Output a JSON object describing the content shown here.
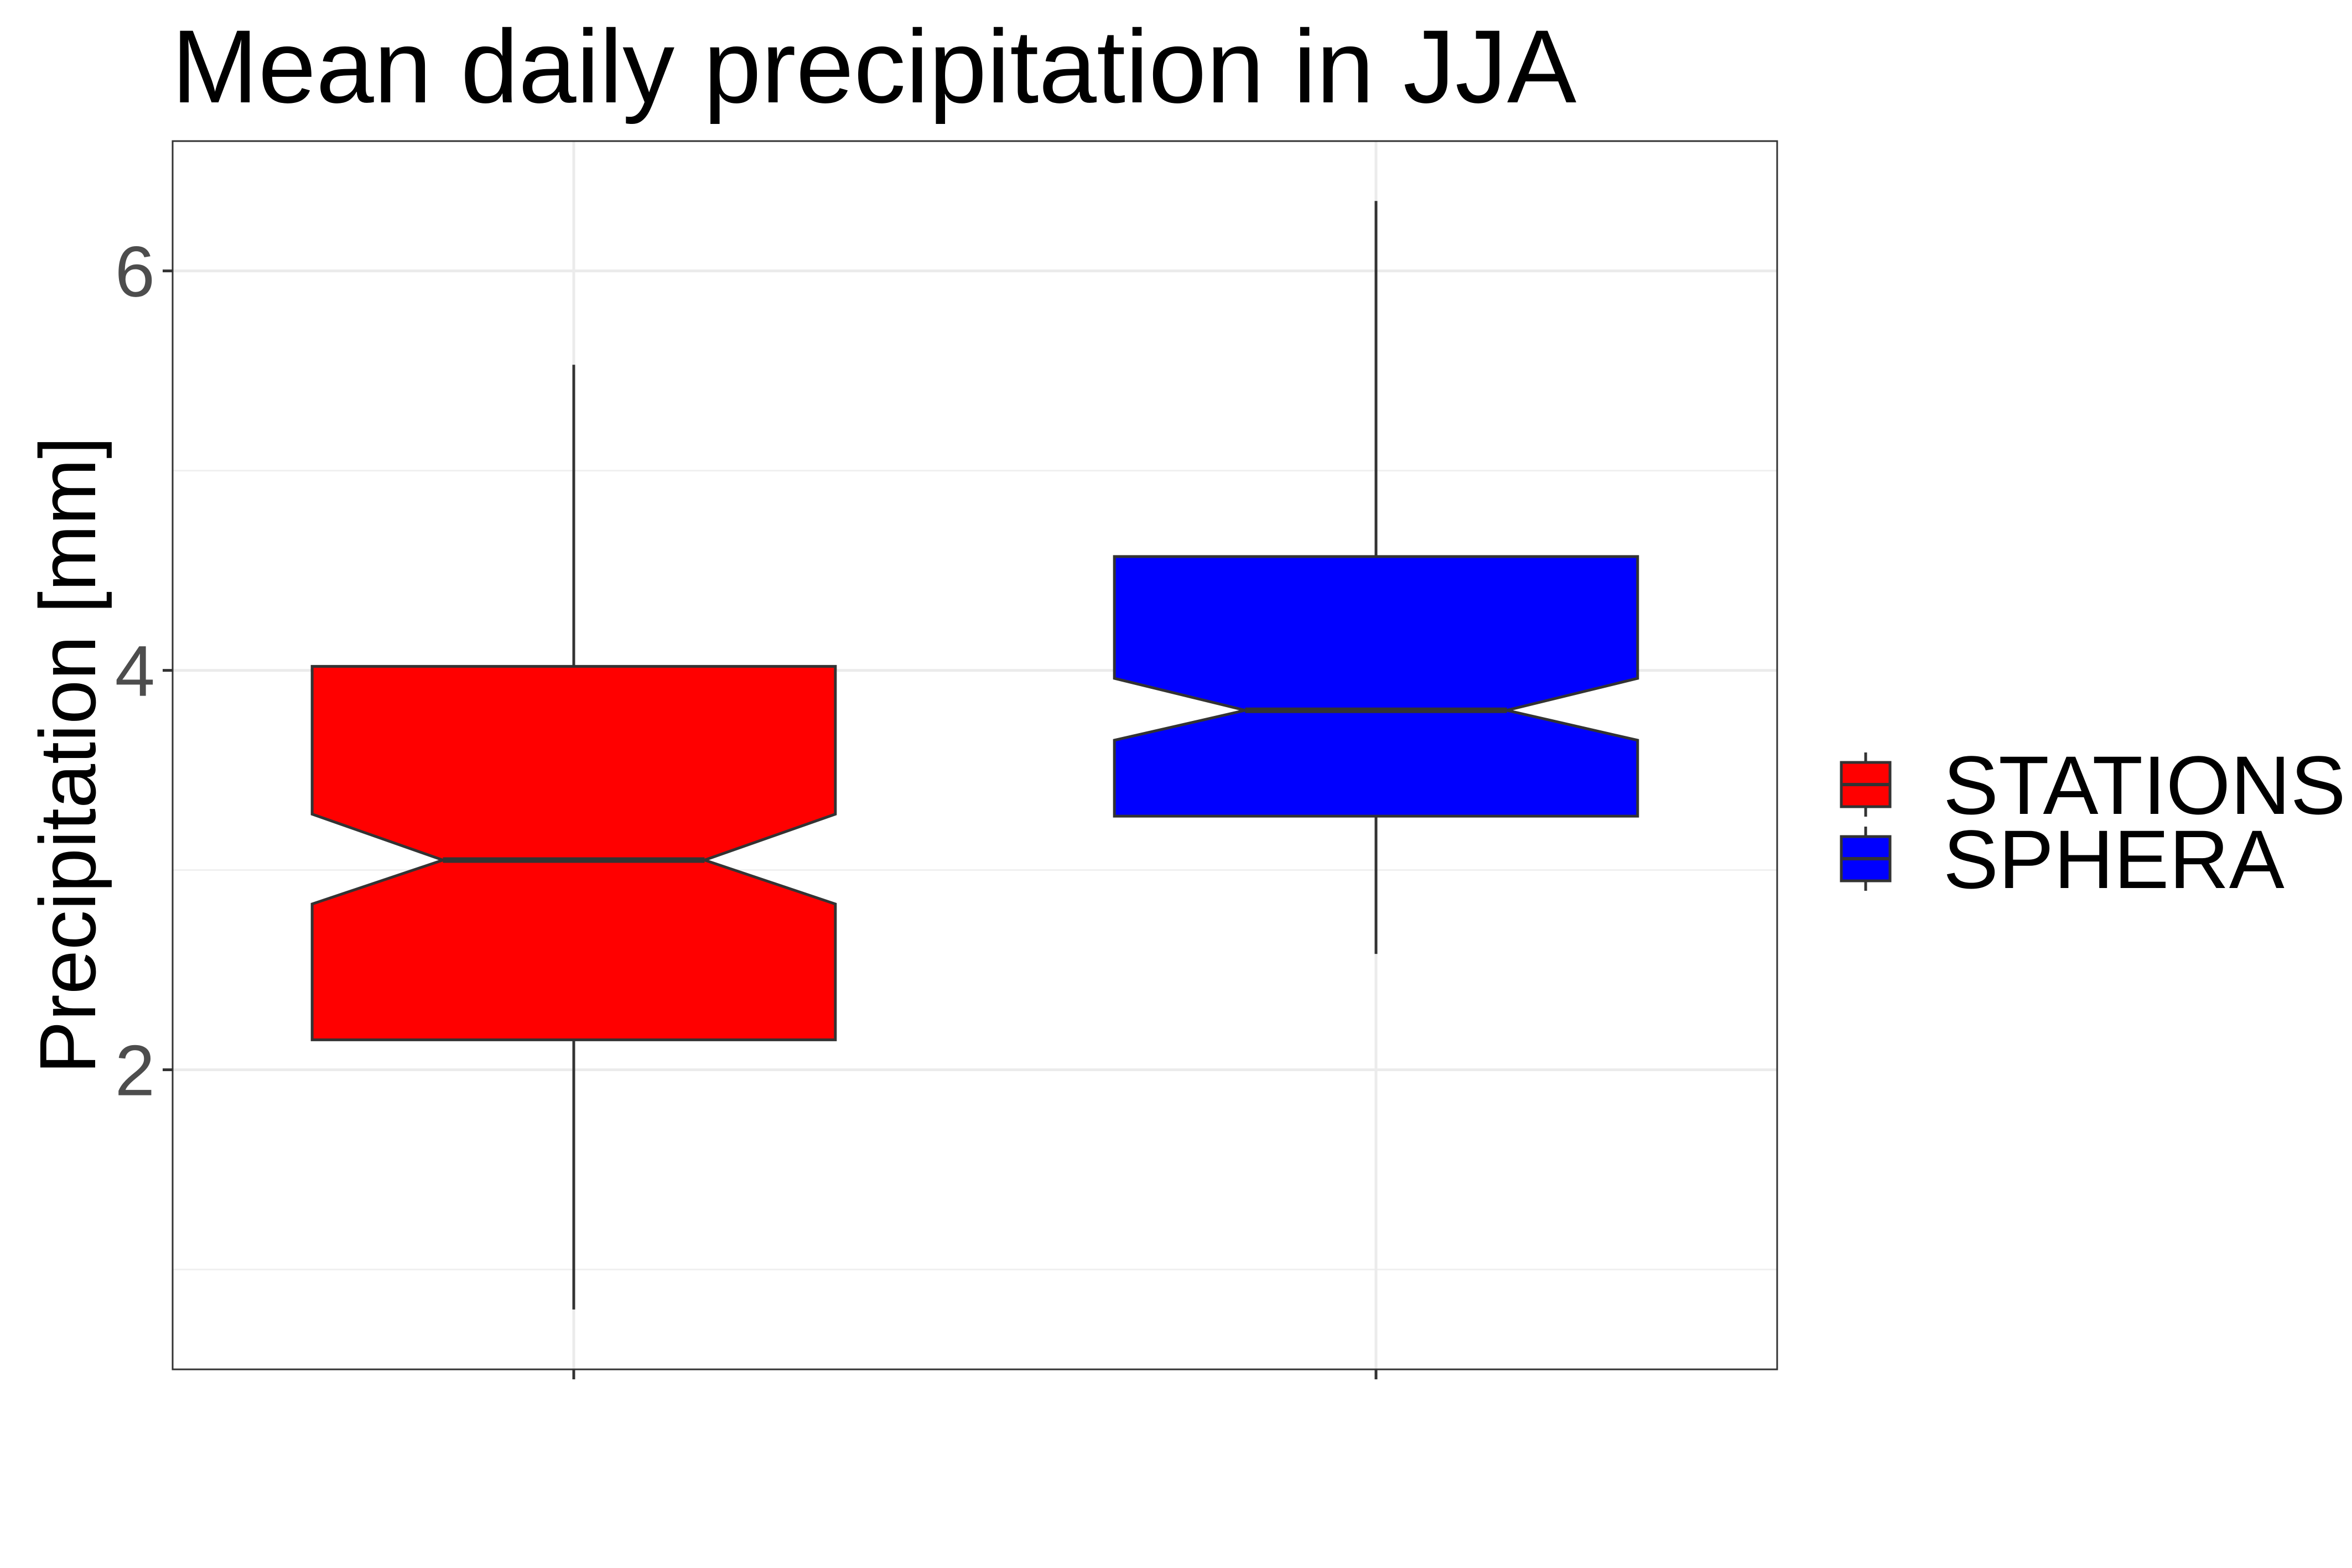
{
  "chart_data": {
    "type": "boxplot",
    "title": "Mean daily precipitation in JJA",
    "xlabel": "",
    "ylabel": "Precipitation [mm]",
    "ylim": [
      0.5,
      6.65
    ],
    "yticks": [
      2,
      4,
      6
    ],
    "y_minor_ticks": [
      1,
      3,
      5
    ],
    "grid": true,
    "notched": true,
    "legend": {
      "position": "right",
      "entries": [
        "STATIONS",
        "SPHERA"
      ]
    },
    "series": [
      {
        "name": "STATIONS",
        "color": "#ff0000",
        "min": 0.8,
        "q1": 2.15,
        "median": 3.05,
        "q3": 4.02,
        "max": 5.53,
        "notch_low": 2.83,
        "notch_high": 3.28
      },
      {
        "name": "SPHERA",
        "color": "#0000ff",
        "min": 2.58,
        "q1": 3.27,
        "median": 3.8,
        "q3": 4.57,
        "max": 6.35,
        "notch_low": 3.65,
        "notch_high": 3.96
      }
    ]
  }
}
